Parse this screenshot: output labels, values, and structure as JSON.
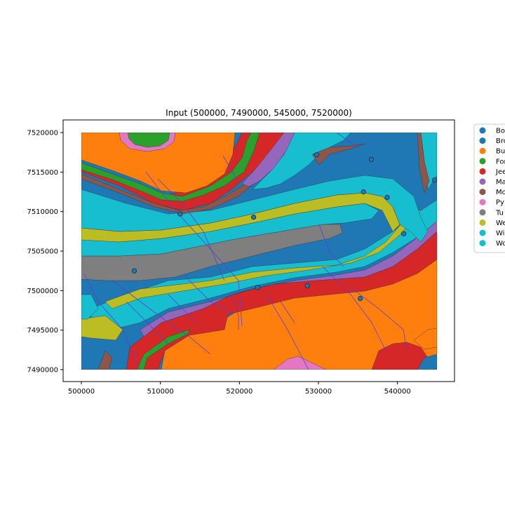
{
  "title": "Input (500000, 7490000, 545000, 7520000)",
  "x_ticks": [
    "500000",
    "510000",
    "520000",
    "530000",
    "540000"
  ],
  "y_ticks": [
    "7490000",
    "7495000",
    "7500000",
    "7505000",
    "7510000",
    "7515000",
    "7520000"
  ],
  "legend": [
    {
      "label": "Bo",
      "color": "#1f77b4"
    },
    {
      "label": "Bro",
      "color": "#1f77b4"
    },
    {
      "label": "Bu",
      "color": "#ff7f0e"
    },
    {
      "label": "For",
      "color": "#2ca02c"
    },
    {
      "label": "Jee",
      "color": "#d62728"
    },
    {
      "label": "Ma",
      "color": "#9467bd"
    },
    {
      "label": "Mo",
      "color": "#8c564b"
    },
    {
      "label": "Py",
      "color": "#e377c2"
    },
    {
      "label": "Tu",
      "color": "#7f7f7f"
    },
    {
      "label": "We",
      "color": "#bcbd22"
    },
    {
      "label": "Wi",
      "color": "#17becf"
    },
    {
      "label": "Wo",
      "color": "#17becf"
    }
  ],
  "chart_data": {
    "type": "map",
    "title": "Input (500000, 7490000, 545000, 7520000)",
    "xlim": [
      500000,
      545000
    ],
    "ylim": [
      7490000,
      7520000
    ],
    "legend_position": "outside-right",
    "points": [
      {
        "x": 506700,
        "y": 7502500
      },
      {
        "x": 512500,
        "y": 7509700
      },
      {
        "x": 521800,
        "y": 7509300
      },
      {
        "x": 522300,
        "y": 7500400
      },
      {
        "x": 528600,
        "y": 7500600
      },
      {
        "x": 529800,
        "y": 7517200
      },
      {
        "x": 535300,
        "y": 7499000
      },
      {
        "x": 535700,
        "y": 7512500
      },
      {
        "x": 536700,
        "y": 7516600
      },
      {
        "x": 538700,
        "y": 7511800
      },
      {
        "x": 540800,
        "y": 7507200
      },
      {
        "x": 544700,
        "y": 7514000
      }
    ]
  }
}
